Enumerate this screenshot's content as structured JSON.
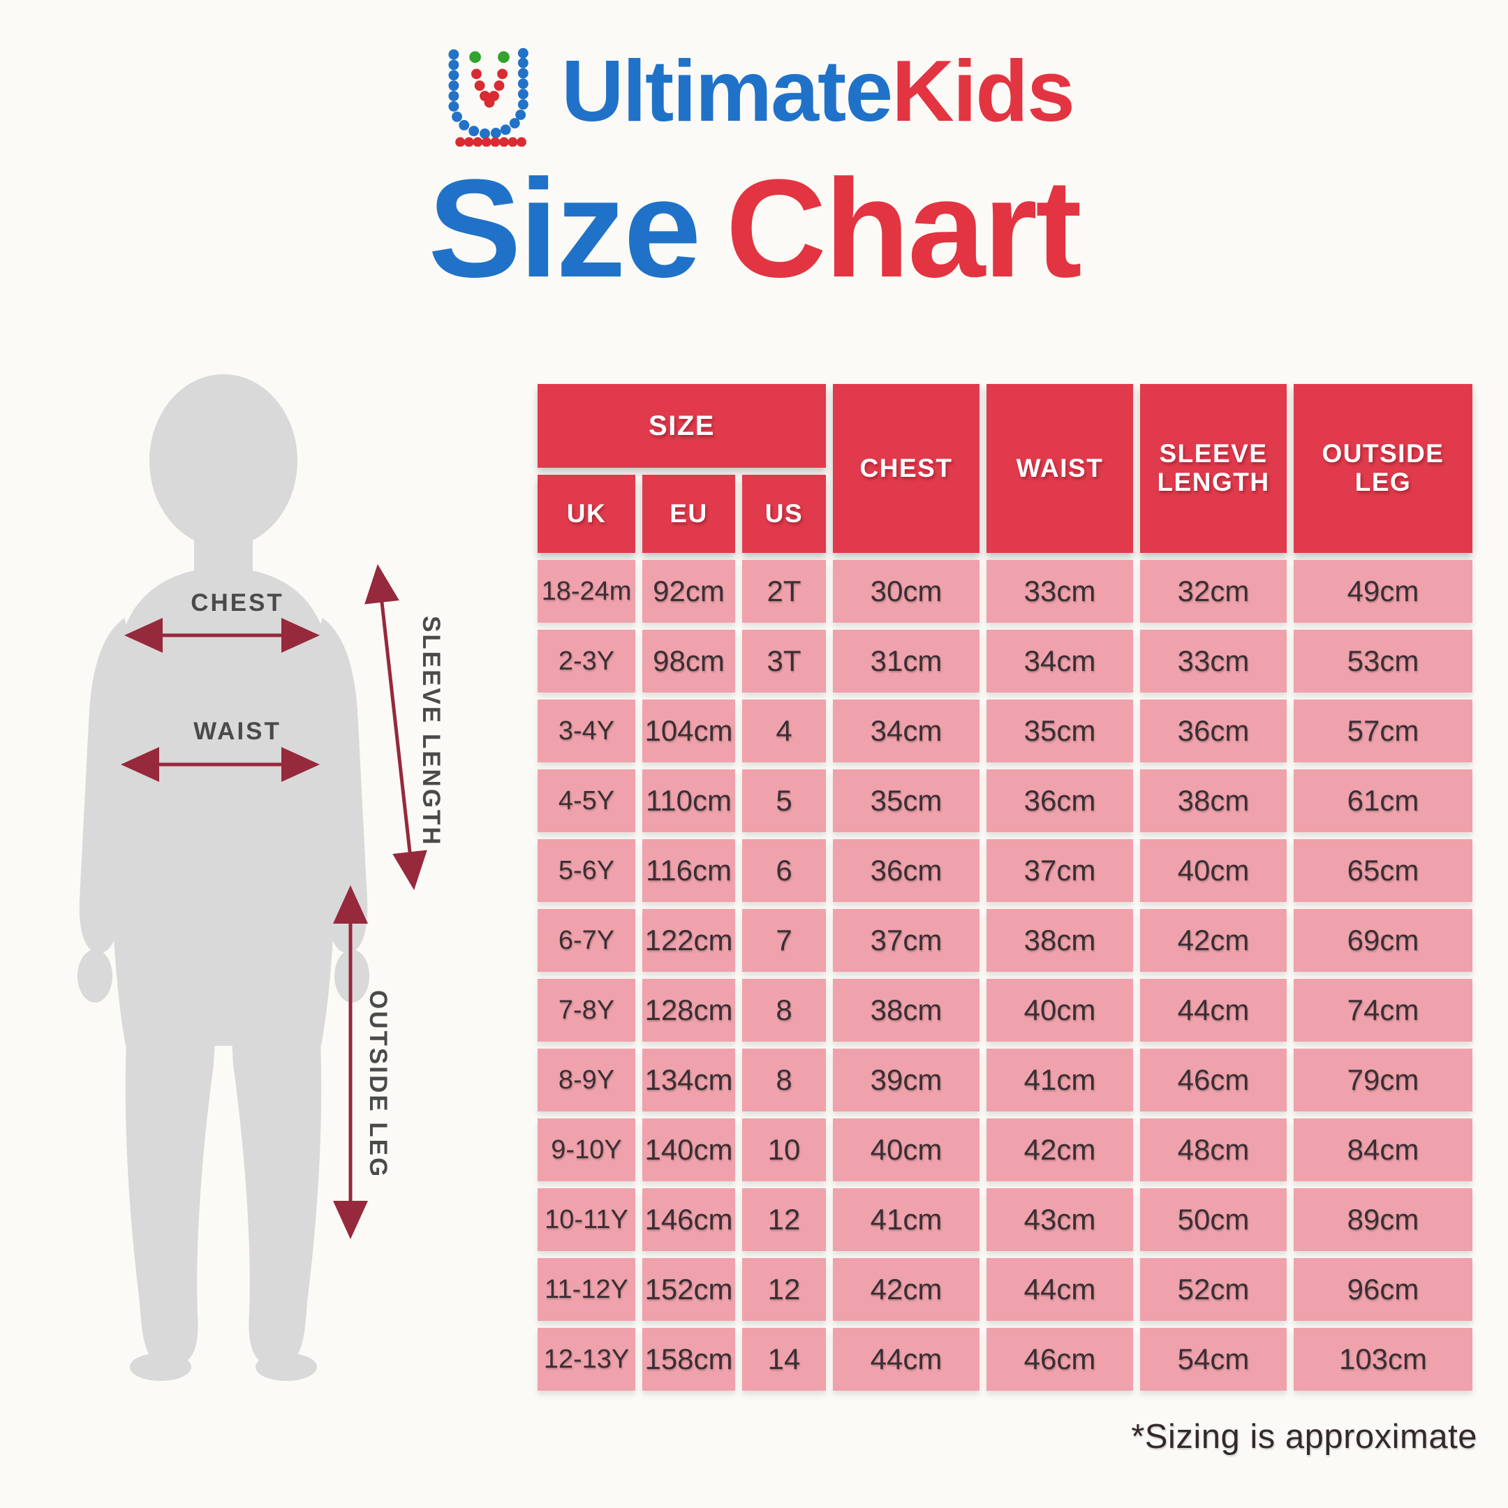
{
  "page": {
    "background": "#fbfaf6"
  },
  "brand": {
    "name_part1": "Ultimate",
    "name_part2": "Kids",
    "logo_icon": "dotted-u-icon",
    "color_blue": "#1f72c8",
    "color_red": "#e33441",
    "color_green": "#35a22f"
  },
  "title": {
    "part1": "Size",
    "part2": "Chart",
    "part1_color": "#1f72c8",
    "part2_color": "#e33441"
  },
  "body_diagram": {
    "labels": {
      "chest": "CHEST",
      "waist": "WAIST",
      "sleeve_length": "SLEEVE LENGTH",
      "outside_leg": "OUTSIDE LEG"
    },
    "silhouette_color": "#d9d9d9",
    "arrow_color": "#96293c"
  },
  "size_table": {
    "header": {
      "size_group": "SIZE",
      "sub_columns": [
        "UK",
        "EU",
        "US"
      ],
      "measure_columns": [
        "CHEST",
        "WAIST",
        "SLEEVE LENGTH",
        "OUTSIDE LEG"
      ]
    },
    "header_bg": "#e13a4c",
    "cell_bg": "#efa2ab",
    "cell_text_color": "#3a2e34"
  },
  "chart_data": {
    "type": "table",
    "title": "UltimateKids Size Chart",
    "column_groups": [
      {
        "label": "SIZE",
        "spans": [
          "UK",
          "EU",
          "US"
        ]
      }
    ],
    "columns": [
      "UK",
      "EU",
      "US",
      "CHEST",
      "WAIST",
      "SLEEVE LENGTH",
      "OUTSIDE LEG"
    ],
    "rows": [
      [
        "18-24m",
        "92cm",
        "2T",
        "30cm",
        "33cm",
        "32cm",
        "49cm"
      ],
      [
        "2-3Y",
        "98cm",
        "3T",
        "31cm",
        "34cm",
        "33cm",
        "53cm"
      ],
      [
        "3-4Y",
        "104cm",
        "4",
        "34cm",
        "35cm",
        "36cm",
        "57cm"
      ],
      [
        "4-5Y",
        "110cm",
        "5",
        "35cm",
        "36cm",
        "38cm",
        "61cm"
      ],
      [
        "5-6Y",
        "116cm",
        "6",
        "36cm",
        "37cm",
        "40cm",
        "65cm"
      ],
      [
        "6-7Y",
        "122cm",
        "7",
        "37cm",
        "38cm",
        "42cm",
        "69cm"
      ],
      [
        "7-8Y",
        "128cm",
        "8",
        "38cm",
        "40cm",
        "44cm",
        "74cm"
      ],
      [
        "8-9Y",
        "134cm",
        "8",
        "39cm",
        "41cm",
        "46cm",
        "79cm"
      ],
      [
        "9-10Y",
        "140cm",
        "10",
        "40cm",
        "42cm",
        "48cm",
        "84cm"
      ],
      [
        "10-11Y",
        "146cm",
        "12",
        "41cm",
        "43cm",
        "50cm",
        "89cm"
      ],
      [
        "11-12Y",
        "152cm",
        "12",
        "42cm",
        "44cm",
        "52cm",
        "96cm"
      ],
      [
        "12-13Y",
        "158cm",
        "14",
        "44cm",
        "46cm",
        "54cm",
        "103cm"
      ]
    ],
    "footnote": "*Sizing is approximate"
  }
}
